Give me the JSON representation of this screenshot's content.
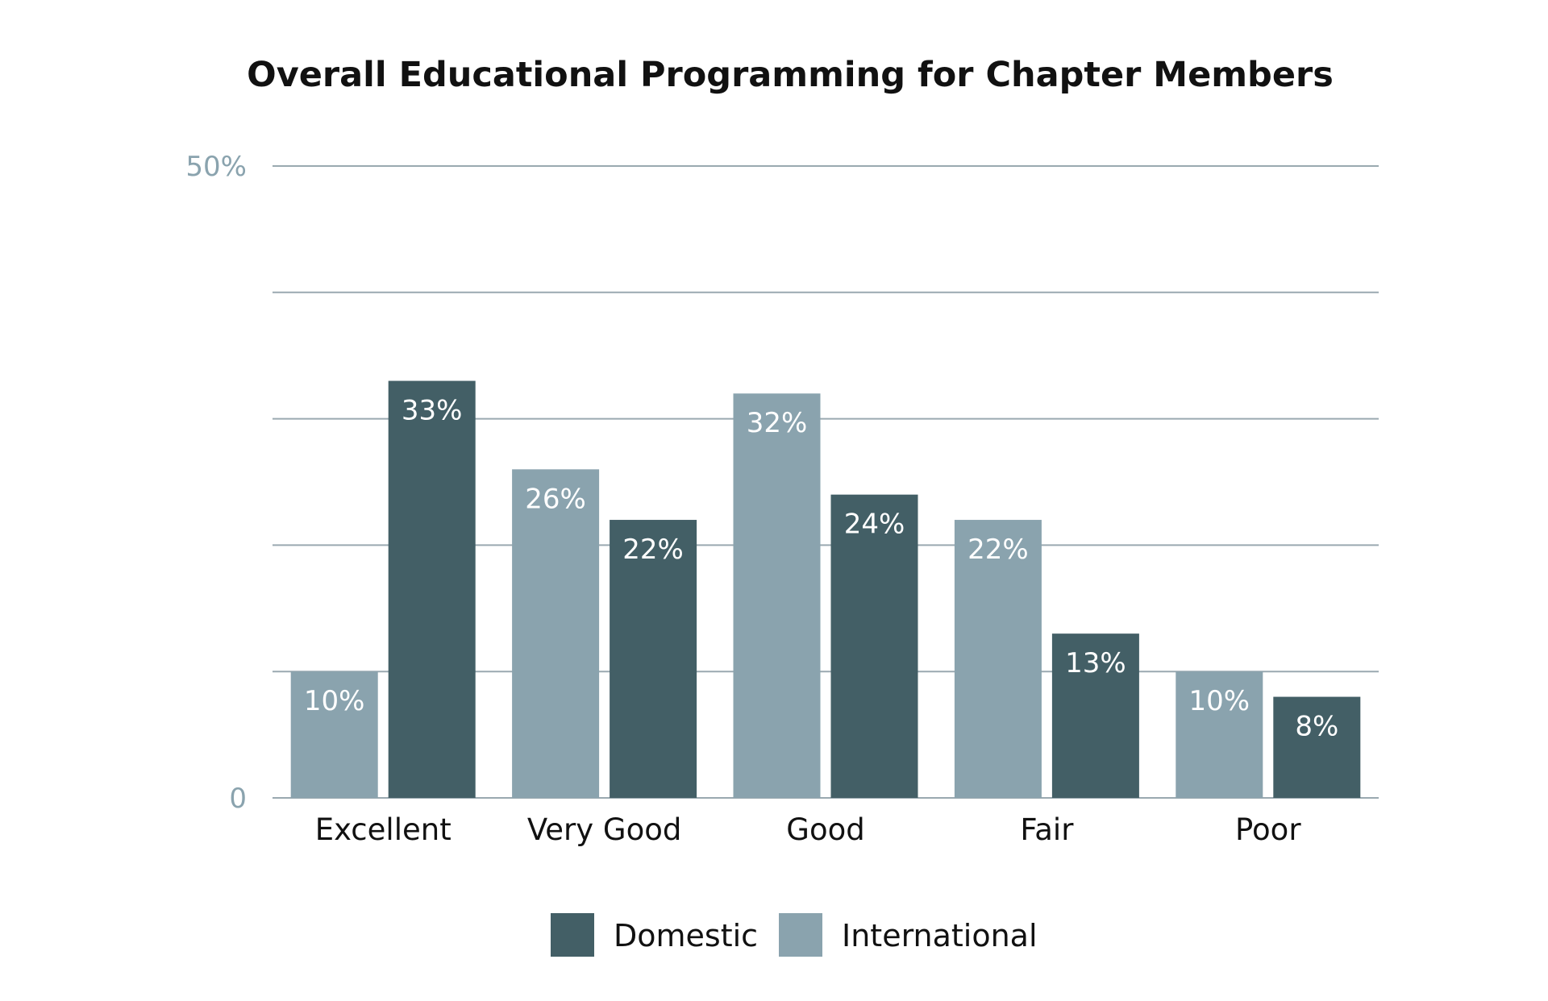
{
  "chart_data": {
    "type": "bar",
    "title": "Overall Educational Programming for Chapter Members",
    "categories": [
      "Excellent",
      "Very Good",
      "Good",
      "Fair",
      "Poor"
    ],
    "series": [
      {
        "name": "International",
        "color": "#8aa3ae",
        "values": [
          10,
          26,
          32,
          22,
          10
        ],
        "labels": [
          "10%",
          "26%",
          "32%",
          "22%",
          "10%"
        ]
      },
      {
        "name": "Domestic",
        "color": "#435f66",
        "values": [
          33,
          22,
          24,
          13,
          8
        ],
        "labels": [
          "33%",
          "22%",
          "24%",
          "13%",
          "8%"
        ]
      }
    ],
    "ylim": [
      0,
      50
    ],
    "yticks": [
      0,
      10,
      20,
      30,
      40,
      50
    ],
    "ytick_labels": [
      "0",
      "",
      "",
      "",
      "",
      "50%"
    ],
    "grid": true,
    "legend": {
      "position": "bottom-center",
      "entries": [
        {
          "name": "Domestic",
          "color": "#435f66"
        },
        {
          "name": "International",
          "color": "#8aa3ae"
        }
      ]
    },
    "xlabel": "",
    "ylabel": ""
  }
}
